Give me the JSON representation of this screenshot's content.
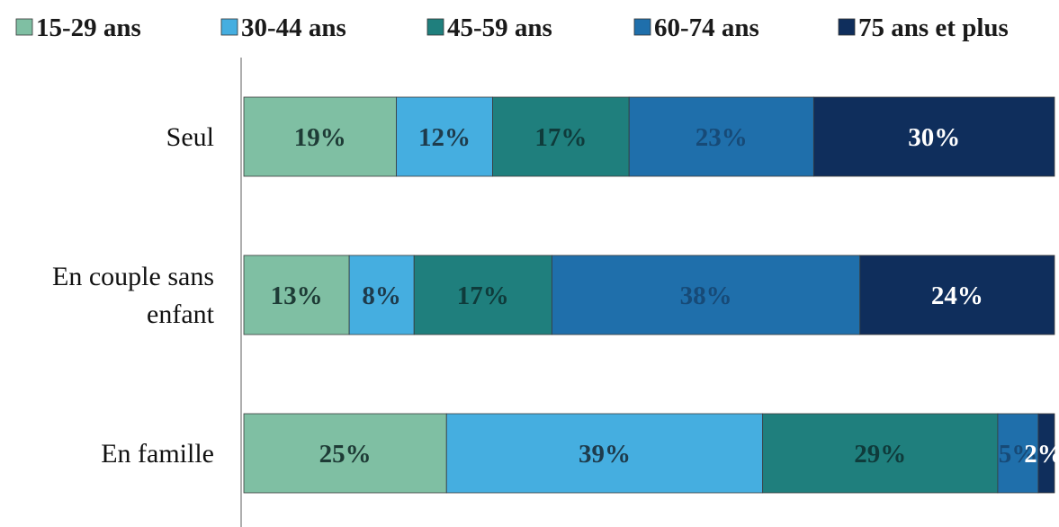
{
  "chart_data": {
    "type": "bar",
    "orientation": "horizontal",
    "stacked": true,
    "percent": true,
    "title": "",
    "xlabel": "",
    "ylabel": "",
    "xlim": [
      0,
      100
    ],
    "grid": false,
    "legend_position": "top",
    "categories": [
      "Seul",
      "En couple sans enfant",
      "En famille"
    ],
    "series": [
      {
        "name": "15-29 ans",
        "color": "#7fbfa3",
        "label_color": "#1e3b36",
        "values": [
          19,
          13,
          25
        ],
        "labels": [
          "19%",
          "13%",
          "25%"
        ]
      },
      {
        "name": "30-44 ans",
        "color": "#45aee0",
        "label_color": "#1e3b4c",
        "values": [
          12,
          8,
          39
        ],
        "labels": [
          "12%",
          "8%",
          "39%"
        ]
      },
      {
        "name": "45-59 ans",
        "color": "#1f7f7d",
        "label_color": "#0f3b3b",
        "values": [
          17,
          17,
          29
        ],
        "labels": [
          "17%",
          "17%",
          "29%"
        ]
      },
      {
        "name": "60-74 ans",
        "color": "#1f6fab",
        "label_color": "#174a77",
        "values": [
          23,
          38,
          5
        ],
        "labels": [
          "23%",
          "38%",
          "5%"
        ]
      },
      {
        "name": "75 ans et plus",
        "color": "#0f2e5c",
        "label_color": "#ffffff",
        "values": [
          30,
          24,
          2
        ],
        "labels": [
          "30%",
          "24%",
          "2%"
        ]
      }
    ]
  }
}
